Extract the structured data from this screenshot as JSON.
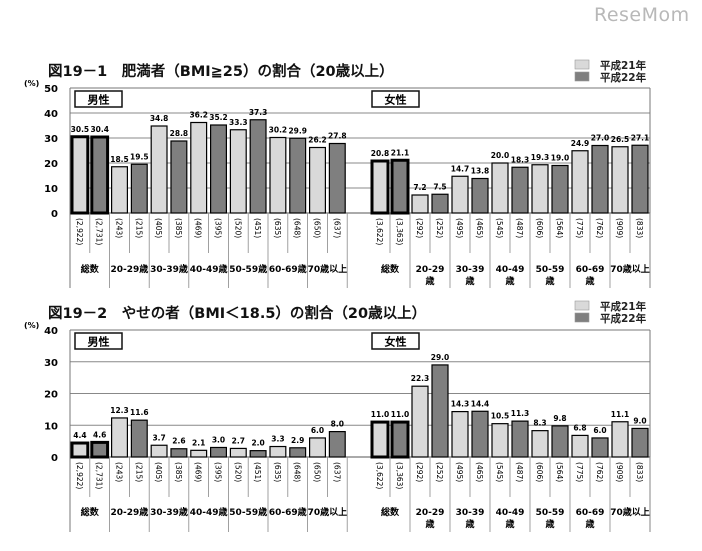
{
  "watermark": "ReseMom",
  "chart_data": [
    {
      "type": "bar",
      "title": "図19－1　肥満者（BMI≧25）の割合（20歳以上）",
      "ylabel": "(%)",
      "ylim": [
        0,
        50
      ],
      "yticks": [
        0,
        10,
        20,
        30,
        40,
        50
      ],
      "grid": true,
      "legend": {
        "placement": "top-right",
        "entries": [
          "平成21年",
          "平成22年"
        ]
      },
      "colors": {
        "平成21年": "#d9d9d9",
        "平成22年": "#7f7f7f"
      },
      "panels": [
        {
          "label": "男性",
          "categories": [
            "総数",
            "20-29歳",
            "30-39歳",
            "40-49歳",
            "50-59歳",
            "60-69歳",
            "70歳以上"
          ],
          "n": [
            [
              "(2,922)",
              "(2,731)"
            ],
            [
              "(243)",
              "(215)"
            ],
            [
              "(405)",
              "(385)"
            ],
            [
              "(469)",
              "(395)"
            ],
            [
              "(520)",
              "(451)"
            ],
            [
              "(635)",
              "(648)"
            ],
            [
              "(650)",
              "(637)"
            ]
          ],
          "series": [
            {
              "name": "平成21年",
              "values": [
                30.5,
                18.5,
                34.8,
                36.2,
                33.3,
                30.2,
                26.2
              ]
            },
            {
              "name": "平成22年",
              "values": [
                30.4,
                19.5,
                28.8,
                35.2,
                37.3,
                29.9,
                27.8
              ]
            }
          ]
        },
        {
          "label": "女性",
          "categories": [
            "総数",
            "20-29歳",
            "30-39歳",
            "40-49歳",
            "50-59歳",
            "60-69歳",
            "70歳以上"
          ],
          "n": [
            [
              "(3,622)",
              "(3,363)"
            ],
            [
              "(292)",
              "(252)"
            ],
            [
              "(495)",
              "(465)"
            ],
            [
              "(545)",
              "(487)"
            ],
            [
              "(606)",
              "(564)"
            ],
            [
              "(775)",
              "(762)"
            ],
            [
              "(909)",
              "(833)"
            ]
          ],
          "series": [
            {
              "name": "平成21年",
              "values": [
                20.8,
                7.2,
                14.7,
                20.0,
                19.3,
                24.9,
                26.5
              ]
            },
            {
              "name": "平成22年",
              "values": [
                21.1,
                7.5,
                13.8,
                18.3,
                19.0,
                27.0,
                27.1
              ]
            }
          ]
        }
      ]
    },
    {
      "type": "bar",
      "title": "図19－2　やせの者（BMI＜18.5）の割合（20歳以上）",
      "ylabel": "(%)",
      "ylim": [
        0,
        40
      ],
      "yticks": [
        0,
        10,
        20,
        30,
        40
      ],
      "grid": true,
      "legend": {
        "placement": "top-right",
        "entries": [
          "平成21年",
          "平成22年"
        ]
      },
      "colors": {
        "平成21年": "#d9d9d9",
        "平成22年": "#7f7f7f"
      },
      "panels": [
        {
          "label": "男性",
          "categories": [
            "総数",
            "20-29歳",
            "30-39歳",
            "40-49歳",
            "50-59歳",
            "60-69歳",
            "70歳以上"
          ],
          "n": [
            [
              "(2,922)",
              "(2,731)"
            ],
            [
              "(243)",
              "(215)"
            ],
            [
              "(405)",
              "(385)"
            ],
            [
              "(469)",
              "(395)"
            ],
            [
              "(520)",
              "(451)"
            ],
            [
              "(635)",
              "(648)"
            ],
            [
              "(650)",
              "(637)"
            ]
          ],
          "series": [
            {
              "name": "平成21年",
              "values": [
                4.4,
                12.3,
                3.7,
                2.1,
                2.7,
                3.3,
                6.0
              ]
            },
            {
              "name": "平成22年",
              "values": [
                4.6,
                11.6,
                2.6,
                3.0,
                2.0,
                2.9,
                8.0
              ]
            }
          ]
        },
        {
          "label": "女性",
          "categories": [
            "総数",
            "20-29歳",
            "30-39歳",
            "40-49歳",
            "50-59歳",
            "60-69歳",
            "70歳以上"
          ],
          "n": [
            [
              "(3,622)",
              "(3,363)"
            ],
            [
              "(292)",
              "(252)"
            ],
            [
              "(495)",
              "(465)"
            ],
            [
              "(545)",
              "(487)"
            ],
            [
              "(606)",
              "(564)"
            ],
            [
              "(775)",
              "(762)"
            ],
            [
              "(909)",
              "(833)"
            ]
          ],
          "series": [
            {
              "name": "平成21年",
              "values": [
                11.0,
                22.3,
                14.3,
                10.5,
                8.3,
                6.8,
                11.1
              ]
            },
            {
              "name": "平成22年",
              "values": [
                11.0,
                29.0,
                14.4,
                11.3,
                9.8,
                6.0,
                9.0
              ]
            }
          ]
        }
      ]
    }
  ]
}
